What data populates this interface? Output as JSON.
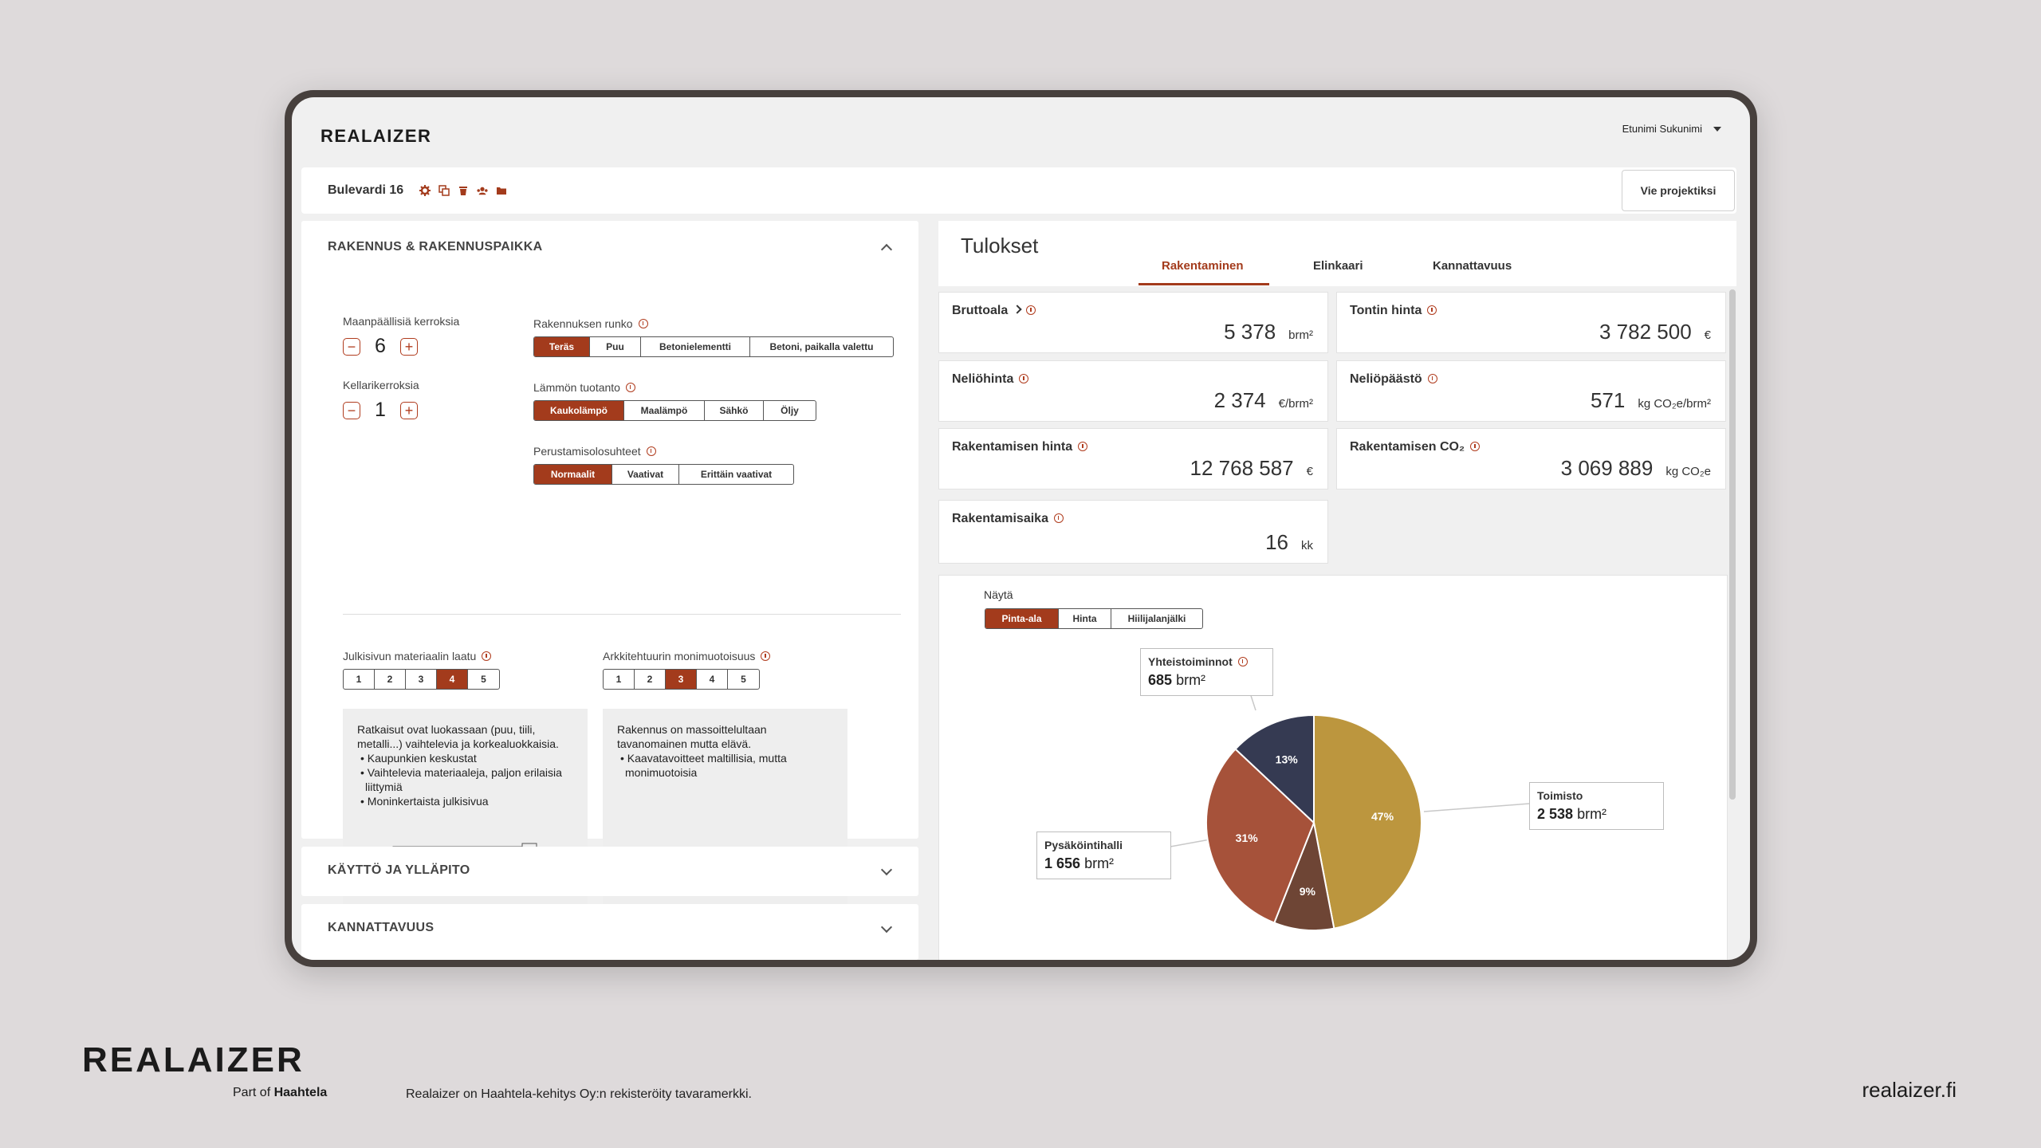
{
  "app": {
    "logo": "REALAIZER",
    "user_name": "Etunimi Sukunimi"
  },
  "project": {
    "name": "Bulevardi 16",
    "export_label": "Vie projektiksi",
    "icons": [
      "gear-icon",
      "copy-icon",
      "trash-icon",
      "users-icon",
      "folder-icon"
    ]
  },
  "building": {
    "title": "RAKENNUS & RAKENNUSPAIKKA",
    "floors_label": "Maanpäällisiä kerroksia",
    "floors_value": "6",
    "basement_label": "Kellarikerroksia",
    "basement_value": "1",
    "frame_label": "Rakennuksen runko",
    "frame_options": [
      "Teräs",
      "Puu",
      "Betonielementti",
      "Betoni, paikalla valettu"
    ],
    "frame_selected": "Teräs",
    "heating_label": "Lämmön tuotanto",
    "heating_options": [
      "Kaukolämpö",
      "Maalämpö",
      "Sähkö",
      "Öljy"
    ],
    "heating_selected": "Kaukolämpö",
    "foundation_label": "Perustamisolosuhteet",
    "foundation_options": [
      "Normaalit",
      "Vaativat",
      "Erittäin vaativat"
    ],
    "foundation_selected": "Normaalit",
    "facade_label": "Julkisivun materiaalin laatu",
    "facade_options": [
      "1",
      "2",
      "3",
      "4",
      "5"
    ],
    "facade_selected": "4",
    "facade_desc": "Ratkaisut ovat luokassaan (puu, tiili, metalli...) vaihtelevia ja korkealuokkaisia.",
    "facade_bullets": [
      "Kaupunkien keskustat",
      "Vaihtelevia materiaaleja, paljon erilaisia liittymiä",
      "Moninkertaista julkisivua"
    ],
    "arch_label": "Arkkitehtuurin monimuotoisuus",
    "arch_options": [
      "1",
      "2",
      "3",
      "4",
      "5"
    ],
    "arch_selected": "3",
    "arch_desc": "Rakennus on massoittelultaan tavanomainen mutta elävä.",
    "arch_bullets": [
      "Kaavatavoitteet maltillisia, mutta monimuotoisia"
    ]
  },
  "sections": {
    "usage": "KÄYTTÖ JA YLLÄPITO",
    "profitability": "KANNATTAVUUS"
  },
  "results": {
    "title": "Tulokset",
    "tabs": [
      "Rakentaminen",
      "Elinkaari",
      "Kannattavuus"
    ],
    "active_tab": "Rakentaminen",
    "kpis": [
      {
        "label": "Bruttoala",
        "value": "5 378",
        "unit": "brm²"
      },
      {
        "label": "Tontin hinta",
        "value": "3 782 500",
        "unit": "€"
      },
      {
        "label": "Neliöhinta",
        "value": "2 374",
        "unit": "€/brm²"
      },
      {
        "label": "Neliöpäästö",
        "value": "571",
        "unit": "kg CO₂e/brm²"
      },
      {
        "label": "Rakentamisen hinta",
        "value": "12 768 587",
        "unit": "€"
      },
      {
        "label": "Rakentamisen CO₂",
        "value": "3 069 889",
        "unit": "kg CO₂e"
      },
      {
        "label": "Rakentamisaika",
        "value": "16",
        "unit": "kk"
      }
    ],
    "show_label": "Näytä",
    "show_options": [
      "Pinta-ala",
      "Hinta",
      "Hiilijalanjälki"
    ],
    "show_selected": "Pinta-ala"
  },
  "chart_data": {
    "type": "pie",
    "slices": [
      {
        "name": "Toimisto",
        "percent": 47,
        "value": "2 538",
        "unit": "brm²",
        "color": "#bc963e"
      },
      {
        "name": "",
        "percent": 9,
        "value": "",
        "unit": "",
        "color": "#6e4535"
      },
      {
        "name": "Pysäköintihalli",
        "percent": 31,
        "value": "1 656",
        "unit": "brm²",
        "color": "#a6523a"
      },
      {
        "name": "Yhteistoiminnot",
        "percent": 13,
        "value": "685",
        "unit": "brm²",
        "color": "#353a52"
      }
    ]
  },
  "footer": {
    "brand": "REALAIZER",
    "part_of": "Part of",
    "parent": "Haahtela",
    "trademark": "Realaizer on Haahtela-kehitys Oy:n rekisteröity tavaramerkki.",
    "site": "realaizer.fi"
  },
  "colors": {
    "accent": "#a33b1c",
    "background": "#dedadb"
  }
}
